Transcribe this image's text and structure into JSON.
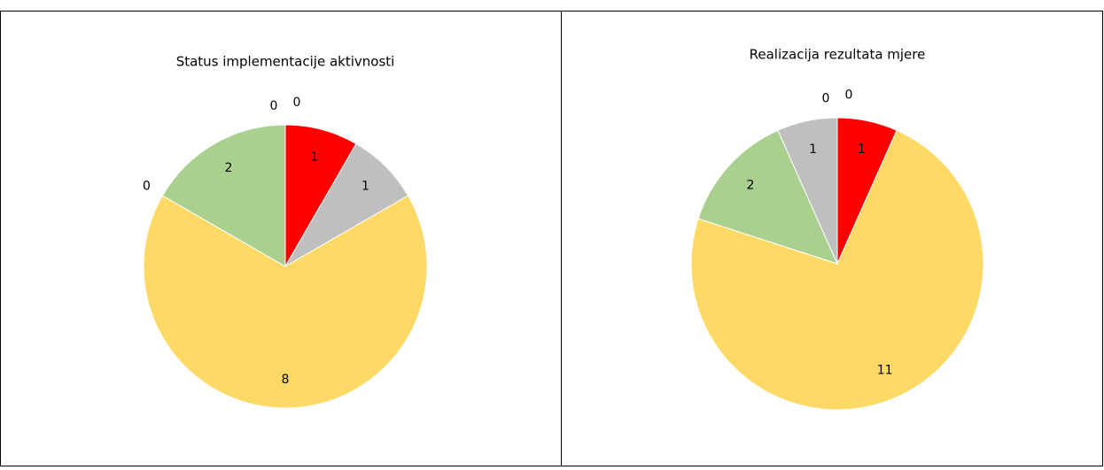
{
  "chart_data": [
    {
      "type": "pie",
      "title": "Status implementacije aktivnosti",
      "values": [
        1,
        1,
        8,
        0,
        2,
        0,
        0
      ],
      "colors": [
        "#ff0000",
        "#bfbfbf",
        "#ffd966",
        "#5b9bd5",
        "#a9d08e",
        "#ed7d31",
        "#4472c4"
      ]
    },
    {
      "type": "pie",
      "title": "Realizacija rezultata mjere",
      "values": [
        1,
        11,
        2,
        1,
        0,
        0
      ],
      "colors": [
        "#ff0000",
        "#ffd966",
        "#a9d08e",
        "#bfbfbf",
        "#5b9bd5",
        "#ed7d31"
      ]
    }
  ]
}
